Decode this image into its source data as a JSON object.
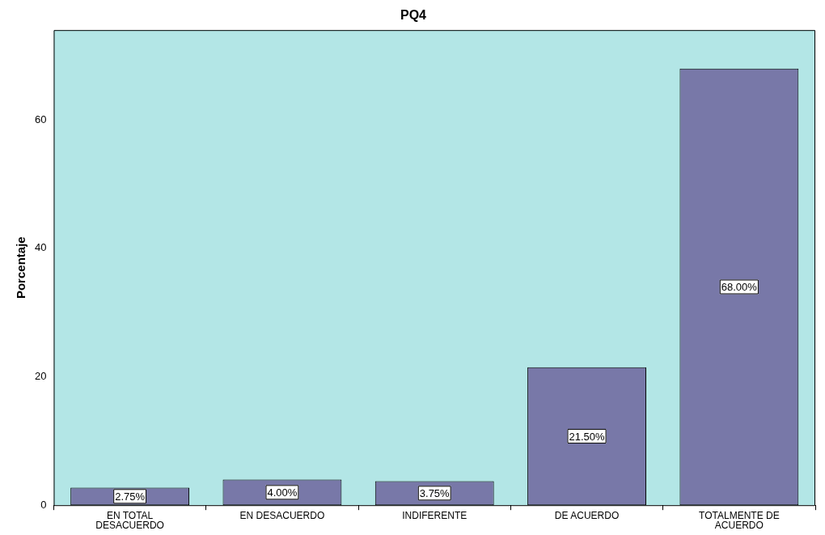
{
  "chart_data": {
    "type": "bar",
    "title": "PQ4",
    "ylabel": "Porcentaje",
    "categories": [
      "EN TOTAL DESACUERDO",
      "EN DESACUERDO",
      "INDIFERENTE",
      "DE ACUERDO",
      "TOTALMENTE DE ACUERDO"
    ],
    "values": [
      2.75,
      4.0,
      3.75,
      21.5,
      68.0
    ],
    "value_labels": [
      "2.75%",
      "4.00%",
      "3.75%",
      "21.50%",
      "68.00%"
    ],
    "color": "#7878a8",
    "ylim": [
      0,
      74
    ],
    "yticks": [
      0,
      20,
      40,
      60
    ],
    "grid": false,
    "legend": false
  }
}
